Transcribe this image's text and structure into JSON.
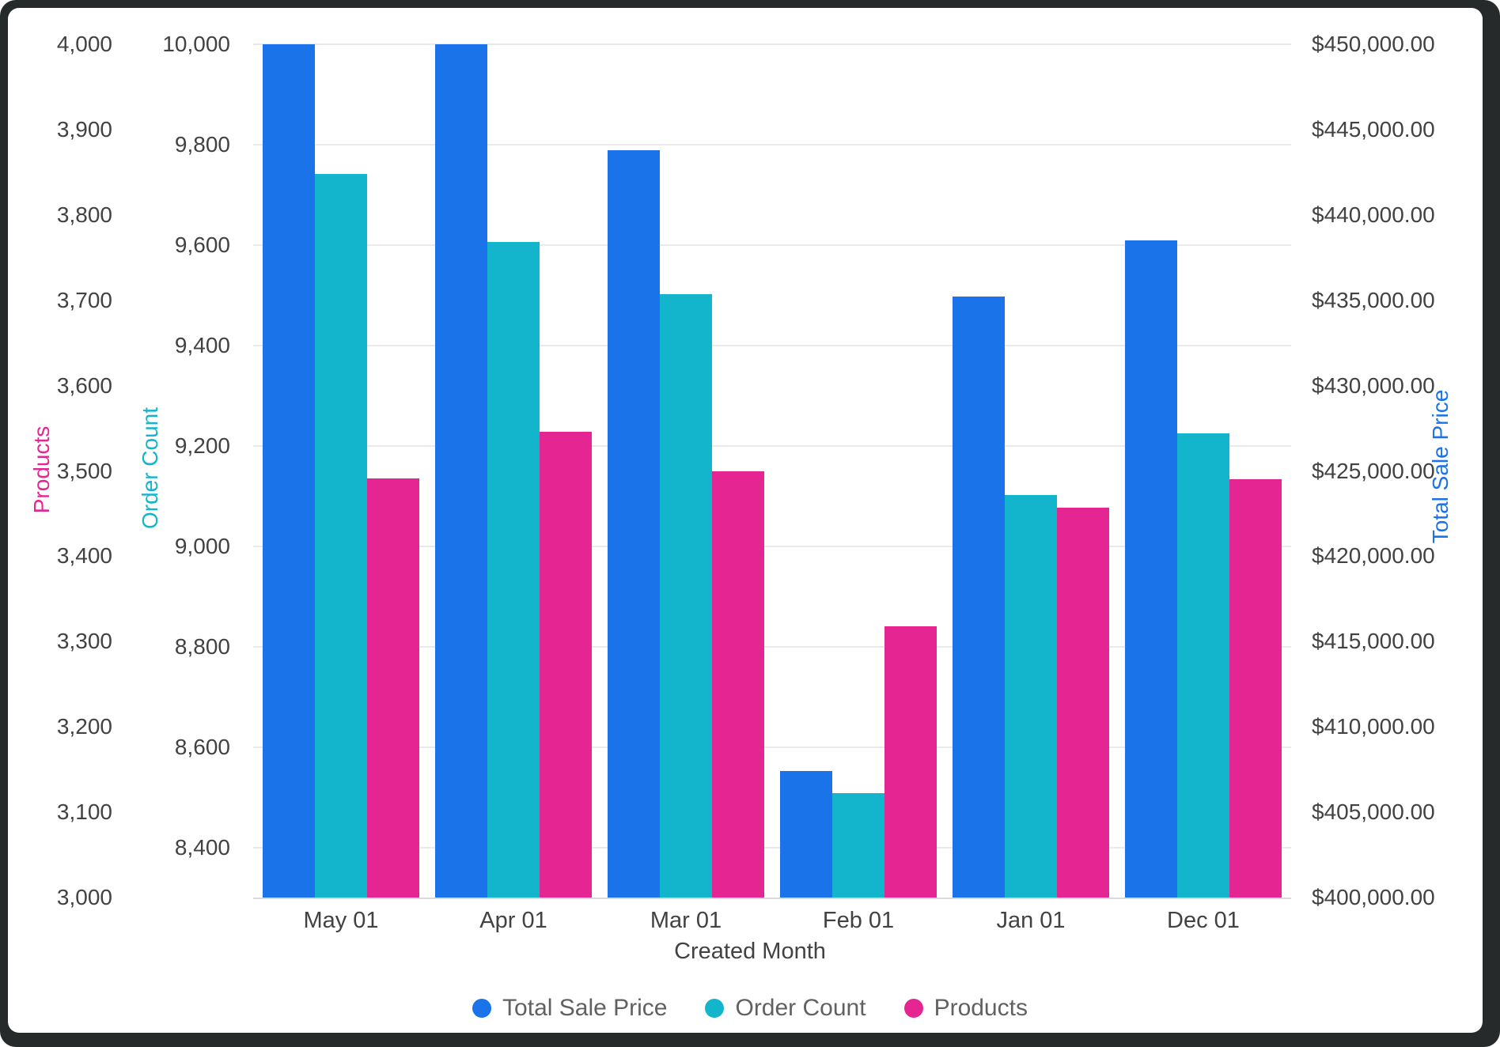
{
  "chart_data": {
    "type": "bar",
    "title": "",
    "categories": [
      "May 01",
      "Apr 01",
      "Mar 01",
      "Feb 01",
      "Jan 01",
      "Dec 01"
    ],
    "series": [
      {
        "name": "Total Sale Price",
        "color": "#1A73E8",
        "axis": "sale",
        "values": [
          450000,
          450000,
          443800,
          407400,
          435200,
          438500
        ]
      },
      {
        "name": "Order Count",
        "color": "#12B5CB",
        "axis": "orders",
        "values": [
          9742,
          9606,
          9502,
          8508,
          9102,
          9225
        ]
      },
      {
        "name": "Products",
        "color": "#E52592",
        "axis": "products",
        "values": [
          3491,
          3546,
          3500,
          3318,
          3457,
          3490
        ]
      }
    ],
    "xlabel": "Created Month",
    "grid": true,
    "legend_position": "bottom",
    "axes": {
      "products": {
        "title": "Products",
        "title_color": "#E52592",
        "min": 3000,
        "max": 4000,
        "tick_values": [
          4000,
          3900,
          3800,
          3700,
          3600,
          3500,
          3400,
          3300,
          3200,
          3100,
          3000
        ],
        "tick_labels": [
          "4,000",
          "3,900",
          "3,800",
          "3,700",
          "3,600",
          "3,500",
          "3,400",
          "3,300",
          "3,200",
          "3,100",
          "3,000"
        ]
      },
      "orders": {
        "title": "Order Count",
        "title_color": "#12B5CB",
        "min": 8300,
        "max": 10000,
        "tick_values": [
          10000,
          9800,
          9600,
          9400,
          9200,
          9000,
          8800,
          8600,
          8400
        ],
        "tick_labels": [
          "10,000",
          "9,800",
          "9,600",
          "9,400",
          "9,200",
          "9,000",
          "8,800",
          "8,600",
          "8,400"
        ]
      },
      "sale": {
        "title": "Total Sale Price",
        "title_color": "#1A73E8",
        "min": 400000,
        "max": 450000,
        "tick_values": [
          450000,
          445000,
          440000,
          435000,
          430000,
          425000,
          420000,
          415000,
          410000,
          405000,
          400000
        ],
        "tick_labels": [
          "$450,000.00",
          "$445,000.00",
          "$440,000.00",
          "$435,000.00",
          "$430,000.00",
          "$425,000.00",
          "$420,000.00",
          "$415,000.00",
          "$410,000.00",
          "$405,000.00",
          "$400,000.00"
        ]
      }
    }
  },
  "colors": {
    "grid": "#e9eaec",
    "baseline": "#d9dbde",
    "tick_text": "#424242",
    "legend_text": "#616161",
    "frame": "#262a2b",
    "card": "#ffffff"
  }
}
